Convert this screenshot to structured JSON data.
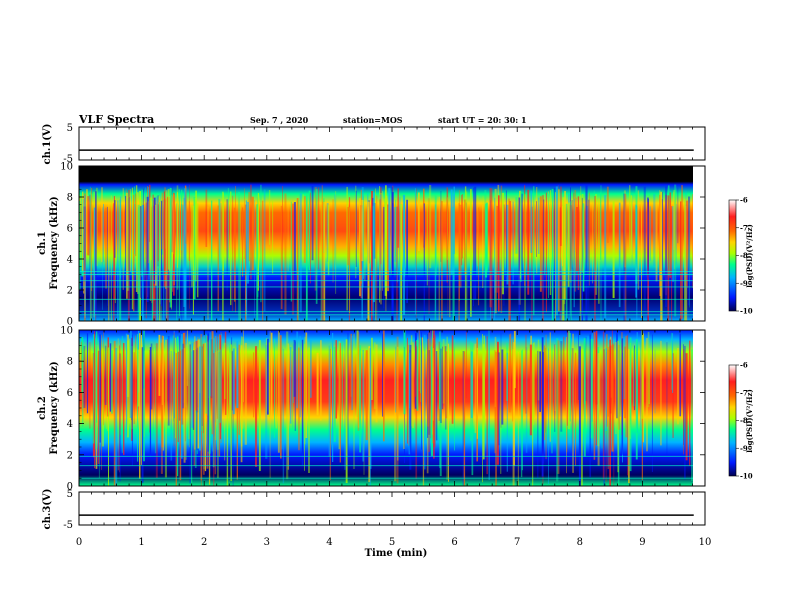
{
  "header": {
    "title": "VLF Spectra",
    "date": "Sep. 7 , 2020",
    "station": "station=MOS",
    "start_ut": "start UT = 20: 30: 1"
  },
  "colors": {
    "frame": "#000000",
    "spectrogram_stops": [
      "#000050",
      "#0018ff",
      "#00b4ff",
      "#00ff8c",
      "#aaff00",
      "#ffd400",
      "#ff6a00",
      "#ff1e1e",
      "#ffffff"
    ]
  },
  "chart_data": [
    {
      "type": "line",
      "id": "ch1-waveform",
      "ylabel": "ch.1(V)",
      "ylim": [
        -5,
        5
      ],
      "y_ticks": [
        "5",
        "-5"
      ],
      "xlim": [
        0,
        10
      ],
      "values_note": "flat trace near -2 V",
      "level": -2
    },
    {
      "type": "heatmap",
      "id": "ch1-spectrogram",
      "ylabel": "ch.1\nFrequency (kHz)",
      "ylim": [
        0,
        10
      ],
      "y_ticks": [
        "0",
        "2",
        "4",
        "6",
        "8",
        "10"
      ],
      "xlim": [
        0,
        9.83
      ],
      "colorbar": {
        "label": "log(PSD)(V²/Hz)",
        "range": [
          -10,
          -6
        ],
        "ticks": [
          "-6",
          "-7",
          "-8",
          "-9",
          "-10"
        ]
      },
      "bands": [
        {
          "freq_khz": [
            9.0,
            10.0
          ],
          "level": "no data (black)"
        },
        {
          "freq_khz": [
            4.5,
            8.5
          ],
          "level": "high, about -7 (orange/red)"
        },
        {
          "freq_khz": [
            3.0,
            4.5
          ],
          "level": "medium, about -8 (green)"
        },
        {
          "freq_khz": [
            0.3,
            3.0
          ],
          "level": "low, about -9.5 (dark blue) with cyan line interference"
        }
      ]
    },
    {
      "type": "heatmap",
      "id": "ch2-spectrogram",
      "ylabel": "ch.2\nFrequency (kHz)",
      "ylim": [
        0,
        10
      ],
      "y_ticks": [
        "0",
        "2",
        "4",
        "6",
        "8",
        "10"
      ],
      "xlim": [
        0,
        9.83
      ],
      "colorbar": {
        "label": "log(PSD)(V²/Hz)",
        "range": [
          -10,
          -6
        ],
        "ticks": [
          "-6",
          "-7",
          "-8",
          "-9",
          "-10"
        ]
      },
      "bands": [
        {
          "freq_khz": [
            9.0,
            10.0
          ],
          "level": "low, about -9.5 (blue)"
        },
        {
          "freq_khz": [
            4.5,
            8.5
          ],
          "level": "high, about -6.8 (red)"
        },
        {
          "freq_khz": [
            3.0,
            4.5
          ],
          "level": "medium, about -8 (green)"
        },
        {
          "freq_khz": [
            0.3,
            3.0
          ],
          "level": "low, about -9.5 (dark blue)"
        }
      ]
    },
    {
      "type": "line",
      "id": "ch3-waveform",
      "ylabel": "ch.3(V)",
      "ylim": [
        -5,
        5
      ],
      "y_ticks": [
        "5",
        "-5"
      ],
      "xlim": [
        0,
        10
      ],
      "values_note": "flat trace near -2 V",
      "level": -2
    }
  ],
  "xaxis": {
    "label": "Time (min)",
    "ticks": [
      "0",
      "1",
      "2",
      "3",
      "4",
      "5",
      "6",
      "7",
      "8",
      "9",
      "10"
    ],
    "range": [
      0,
      10
    ]
  }
}
